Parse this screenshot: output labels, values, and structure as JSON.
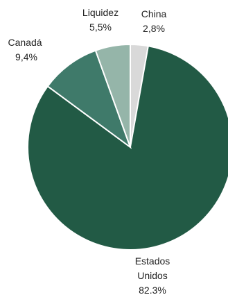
{
  "chart_data": {
    "type": "pie",
    "title": "",
    "slices": [
      {
        "label": "Estados Unidos",
        "value": 82.3,
        "value_label": "82.3%",
        "color": "#225a45"
      },
      {
        "label": "Canadá",
        "value": 9.4,
        "value_label": "9,4%",
        "color": "#3f7a6a"
      },
      {
        "label": "Liquidez",
        "value": 5.5,
        "value_label": "5,5%",
        "color": "#95b5a9"
      },
      {
        "label": "China",
        "value": 2.8,
        "value_label": "2,8%",
        "color": "#d9d9d9"
      }
    ],
    "label_lines": {
      "estados_unidos": [
        "Estados",
        "Unidos"
      ],
      "canada": [
        "Canadá"
      ],
      "liquidez": [
        "Liquidez"
      ],
      "china": [
        "China"
      ]
    }
  }
}
